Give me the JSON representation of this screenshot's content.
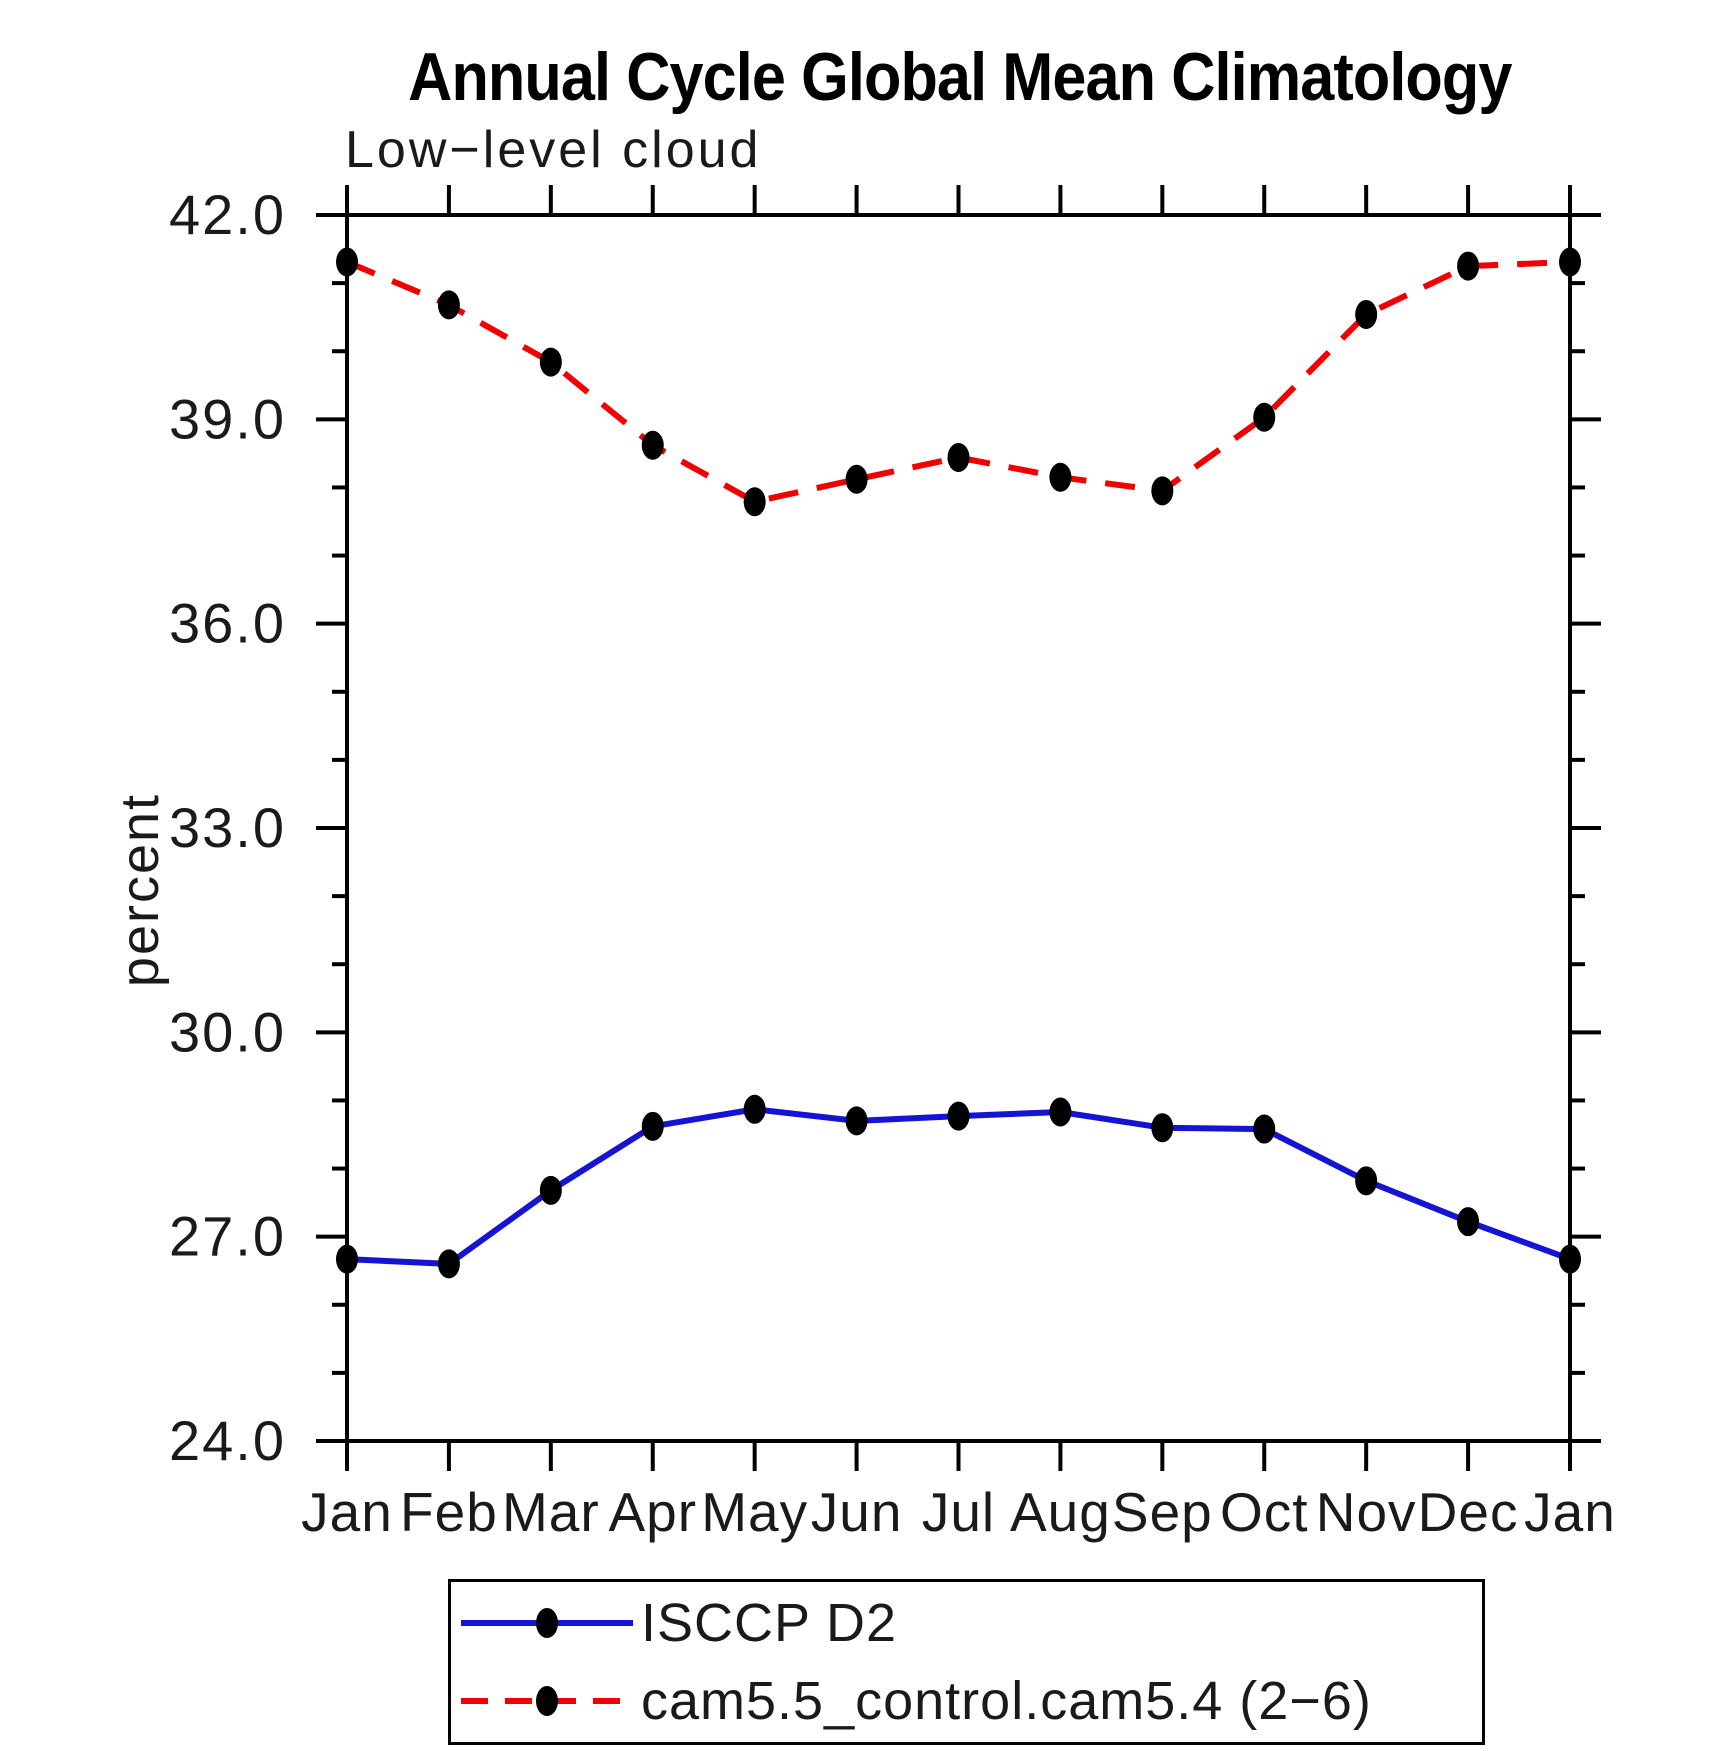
{
  "page": {
    "background_color": "#ffffff",
    "axis_color": "#000000",
    "text_color": "#1a1a1a"
  },
  "chart_data": {
    "type": "line",
    "title": "Annual Cycle Global Mean Climatology",
    "subtitle": "Low−level cloud",
    "ylabel": "percent",
    "xlabel": "",
    "categories": [
      "Jan",
      "Feb",
      "Mar",
      "Apr",
      "May",
      "Jun",
      "Jul",
      "Aug",
      "Sep",
      "Oct",
      "Nov",
      "Dec",
      "Jan"
    ],
    "ylim": [
      24.0,
      42.0
    ],
    "ytick_major_values": [
      24,
      27,
      30,
      33,
      36,
      39,
      42
    ],
    "ytick_major_labels": [
      "24.0",
      "27.0",
      "30.0",
      "33.0",
      "36.0",
      "39.0",
      "42.0"
    ],
    "ytick_minor_step": 1.0,
    "grid": false,
    "legend_position": "bottom",
    "series": [
      {
        "name": "ISCCP D2",
        "line_style": "solid",
        "color": "#1414d2",
        "marker": "filled-ellipse",
        "marker_color": "#000000",
        "values": [
          26.67,
          26.6,
          27.68,
          28.62,
          28.87,
          28.7,
          28.77,
          28.83,
          28.6,
          28.58,
          27.82,
          27.22,
          26.67
        ]
      },
      {
        "name": "cam5.5_control.cam5.4 (2−6)",
        "line_style": "dashed",
        "color": "#f00000",
        "marker": "filled-ellipse",
        "marker_color": "#000000",
        "values": [
          41.31,
          40.68,
          39.84,
          38.62,
          37.79,
          38.12,
          38.44,
          38.15,
          37.95,
          39.03,
          40.54,
          41.25,
          41.31
        ]
      }
    ]
  }
}
